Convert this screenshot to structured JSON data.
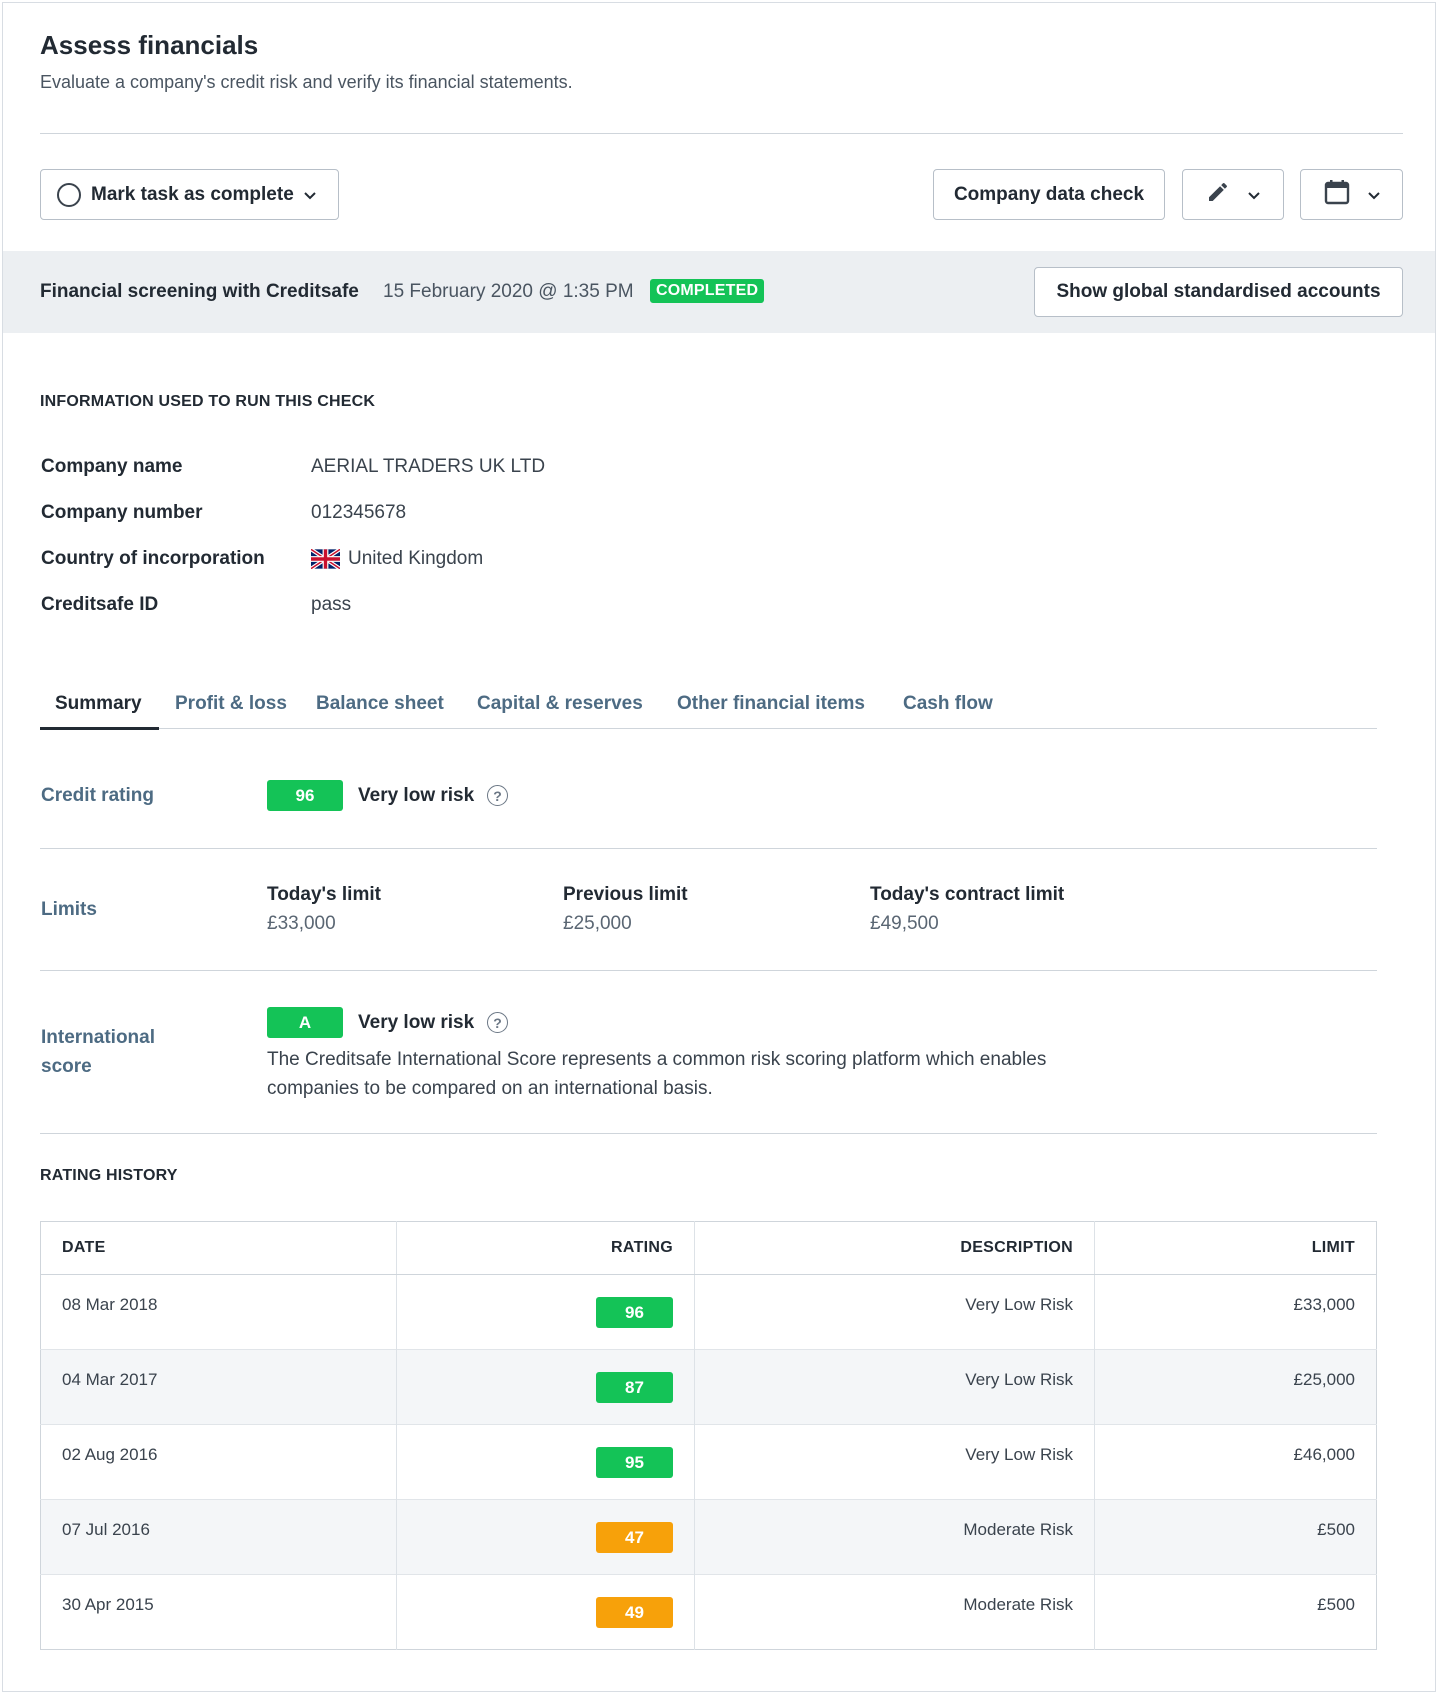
{
  "header": {
    "title": "Assess financials",
    "subtitle": "Evaluate a company's credit risk and verify its financial statements."
  },
  "toolbar": {
    "mark_complete_label": "Mark task as complete",
    "company_check_label": "Company data check"
  },
  "screening": {
    "title": "Financial screening with Creditsafe",
    "date": "15 February 2020 @ 1:35 PM",
    "status": "COMPLETED",
    "show_accounts_label": "Show global standardised accounts"
  },
  "info": {
    "heading": "INFORMATION USED TO RUN THIS CHECK",
    "rows": [
      {
        "label": "Company name",
        "value": "AERIAL TRADERS UK LTD"
      },
      {
        "label": "Company number",
        "value": "012345678"
      },
      {
        "label": "Country of incorporation",
        "value": "United Kingdom"
      },
      {
        "label": "Creditsafe ID",
        "value": "pass"
      }
    ]
  },
  "tabs": [
    {
      "label": "Summary"
    },
    {
      "label": "Profit & loss"
    },
    {
      "label": "Balance sheet"
    },
    {
      "label": "Capital & reserves"
    },
    {
      "label": "Other financial items"
    },
    {
      "label": "Cash flow"
    }
  ],
  "summary": {
    "credit_rating": {
      "label": "Credit rating",
      "score": "96",
      "risk": "Very low risk"
    },
    "limits": {
      "label": "Limits",
      "items": [
        {
          "title": "Today's limit",
          "value": "£33,000"
        },
        {
          "title": "Previous limit",
          "value": "£25,000"
        },
        {
          "title": "Today's contract limit",
          "value": "£49,500"
        }
      ]
    },
    "international": {
      "label_line1": "International",
      "label_line2": "score",
      "score": "A",
      "risk": "Very low risk",
      "description_line1": "The Creditsafe International Score represents a common risk scoring platform which enables",
      "description_line2": "companies to be compared on an international basis."
    }
  },
  "history": {
    "heading": "RATING HISTORY",
    "columns": [
      "DATE",
      "RATING",
      "DESCRIPTION",
      "LIMIT"
    ],
    "rows": [
      {
        "date": "08 Mar 2018",
        "rating": "96",
        "description": "Very Low Risk",
        "limit": "£33,000"
      },
      {
        "date": "04 Mar 2017",
        "rating": "87",
        "description": "Very Low Risk",
        "limit": "£25,000"
      },
      {
        "date": "02 Aug 2016",
        "rating": "95",
        "description": "Very Low Risk",
        "limit": "£46,000"
      },
      {
        "date": "07 Jul 2016",
        "rating": "47",
        "description": "Moderate Risk",
        "limit": "£500"
      },
      {
        "date": "30 Apr 2015",
        "rating": "49",
        "description": "Moderate Risk",
        "limit": "£500"
      }
    ]
  },
  "colors": {
    "green": "#14c357",
    "orange": "#f7a10a"
  }
}
